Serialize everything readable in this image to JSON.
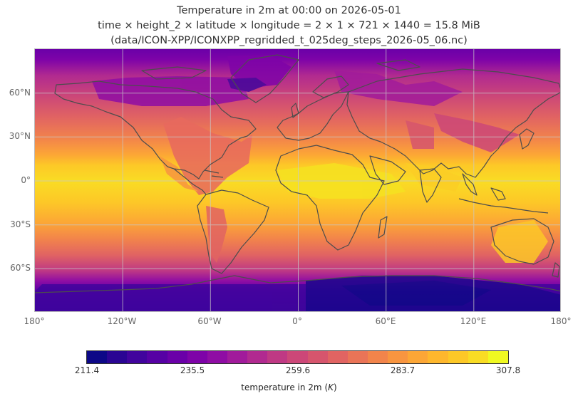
{
  "title": {
    "line1": "Temperature in 2m at 00:00 on 2026-05-01",
    "line2": "time × height_2 × latitude × longitude = 2 × 1 × 721 × 1440 = 15.8 MiB",
    "line3": "(data/ICON-XPP/ICONXPP_regridded_t_025deg_steps_2026-05_06.nc)"
  },
  "map": {
    "projection": "equirectangular",
    "lon_range": [
      -180,
      180
    ],
    "lat_range": [
      -90,
      90
    ],
    "x_ticks": [
      "180°",
      "120°W",
      "60°W",
      "0°",
      "60°E",
      "120°E",
      "180°"
    ],
    "y_ticks": [
      "60°N",
      "30°N",
      "0°",
      "30°S",
      "60°S"
    ],
    "grid": true,
    "coastline_color": "#4d4d4d",
    "colormap": "plasma"
  },
  "colorbar": {
    "label": "temperature in 2m",
    "unit": "K",
    "min": 211.4,
    "max": 307.8,
    "ticks": [
      "211.4",
      "235.5",
      "259.6",
      "283.7",
      "307.8"
    ],
    "colors": [
      "#0d0887",
      "#2a0593",
      "#41049d",
      "#5601a4",
      "#6a00a8",
      "#7e03a8",
      "#8f0da4",
      "#a11b9b",
      "#b12a90",
      "#bf3984",
      "#cc4778",
      "#d6556d",
      "#e16462",
      "#ea7457",
      "#f2844b",
      "#f89540",
      "#fca636",
      "#feb72d",
      "#fdc827",
      "#f9dc24",
      "#f0f921"
    ]
  }
}
